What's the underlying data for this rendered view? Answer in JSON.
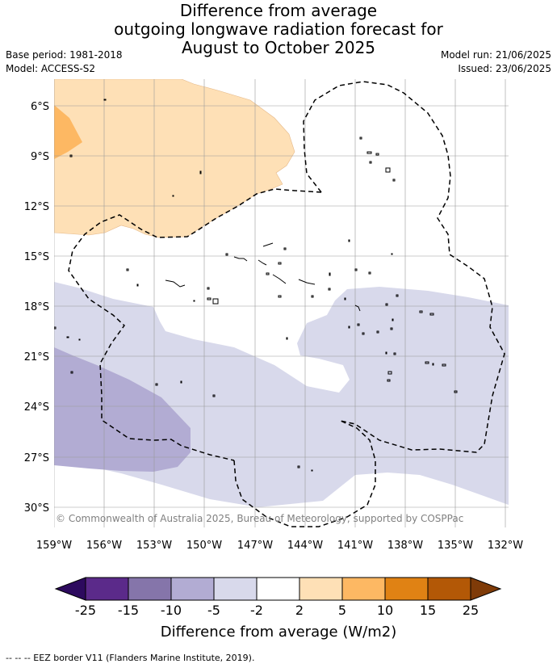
{
  "title": {
    "line1": "Difference from average",
    "line2": "outgoing longwave radiation forecast for",
    "line3": "August to October 2025"
  },
  "meta": {
    "base_period": "Base period: 1981-2018",
    "model": "Model: ACCESS-S2",
    "model_run": "Model run: 21/06/2025",
    "issued": "Issued: 23/06/2025"
  },
  "map": {
    "lat_labels": [
      "6°S",
      "9°S",
      "12°S",
      "15°S",
      "18°S",
      "21°S",
      "24°S",
      "27°S",
      "30°S"
    ],
    "lon_labels": [
      "159°W",
      "156°W",
      "153°W",
      "150°W",
      "147°W",
      "144°W",
      "141°W",
      "138°W",
      "135°W",
      "132°W"
    ],
    "copyright": "© Commonwealth of Australia 2025, Bureau of Meteorology, supported by COSPPac"
  },
  "colorbar": {
    "ticks": [
      "-25",
      "-15",
      "-10",
      "-5",
      "-2",
      "2",
      "5",
      "10",
      "15",
      "25"
    ],
    "colors": {
      "below_min": "#2d0a5e",
      "c1": "#5b2a8a",
      "c2": "#8575aa",
      "c3": "#b2acd3",
      "c4": "#d8d9eb",
      "c5": "#ffffff",
      "c6": "#fee0b6",
      "c7": "#fdb863",
      "c8": "#e08214",
      "c9": "#b35806",
      "above_max": "#7f3b08"
    },
    "label": "Difference from average (W/m2)"
  },
  "legend_footer": "--  --  -- EEZ border V11 (Flanders Marine Institute, 2019)."
}
